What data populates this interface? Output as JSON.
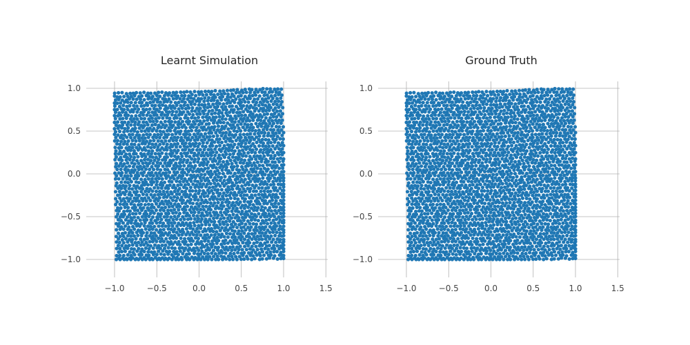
{
  "chart_data": [
    {
      "type": "scatter",
      "title": "Learnt Simulation",
      "xlabel": "",
      "ylabel": "",
      "xlim": [
        -1.2,
        1.55
      ],
      "ylim": [
        -1.22,
        1.22
      ],
      "xticks": [
        -1.0,
        -0.5,
        0.0,
        0.5,
        1.0,
        1.5
      ],
      "xtick_labels": [
        "−1.0",
        "−0.5",
        "0.0",
        "0.5",
        "1.0",
        "1.5"
      ],
      "yticks": [
        -1.0,
        -0.5,
        0.0,
        0.5,
        1.0
      ],
      "ytick_labels": [
        "−1.0",
        "−0.5",
        "0.0",
        "0.5",
        "1.0"
      ],
      "grid": true,
      "marker_color": "#1f77b4",
      "particle_region": {
        "x": [
          -1.0,
          1.0
        ],
        "y": [
          -1.0,
          1.0
        ]
      },
      "particle_spacing": 0.043,
      "swirl_center": [
        0.35,
        0.4
      ],
      "seed": 11
    },
    {
      "type": "scatter",
      "title": "Ground Truth",
      "xlabel": "",
      "ylabel": "",
      "xlim": [
        -1.2,
        1.55
      ],
      "ylim": [
        -1.22,
        1.22
      ],
      "xticks": [
        -1.0,
        -0.5,
        0.0,
        0.5,
        1.0,
        1.5
      ],
      "xtick_labels": [
        "−1.0",
        "−0.5",
        "0.0",
        "0.5",
        "1.0",
        "1.5"
      ],
      "yticks": [
        -1.0,
        -0.5,
        0.0,
        0.5,
        1.0
      ],
      "ytick_labels": [
        "−1.0",
        "−0.5",
        "0.0",
        "0.5",
        "1.0"
      ],
      "grid": true,
      "marker_color": "#1f77b4",
      "particle_region": {
        "x": [
          -1.0,
          1.0
        ],
        "y": [
          -1.0,
          1.0
        ]
      },
      "particle_spacing": 0.043,
      "swirl_center": [
        0.35,
        0.4
      ],
      "seed": 11
    }
  ]
}
